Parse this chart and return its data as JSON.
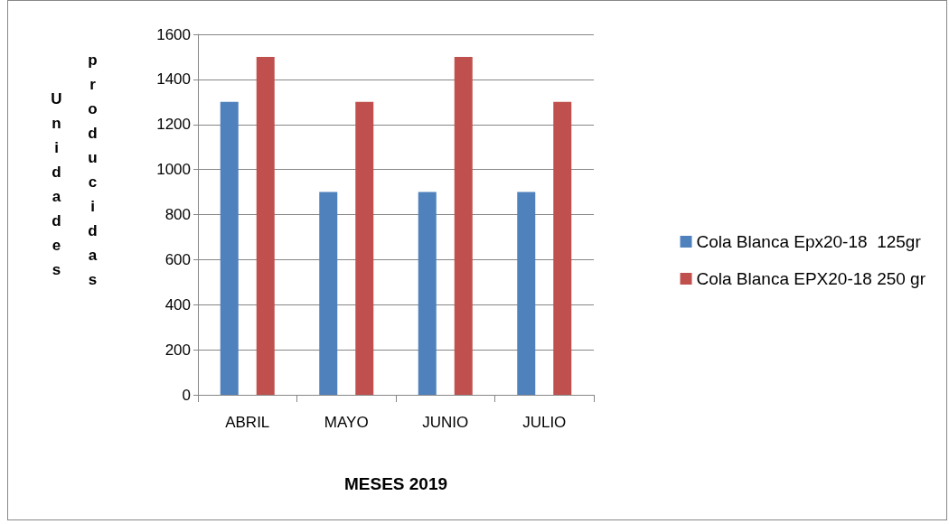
{
  "chart_data": {
    "type": "bar",
    "xlabel": "MESES 2019",
    "ylabel": "Unidades producidas",
    "categories": [
      "ABRIL",
      "MAYO",
      "JUNIO",
      "JULIO"
    ],
    "series": [
      {
        "name": "Cola Blanca Epx20-18  125gr",
        "color": "#4f81bd",
        "values": [
          1300,
          900,
          900,
          900
        ]
      },
      {
        "name": "Cola Blanca EPX20-18 250 gr",
        "color": "#c0504d",
        "values": [
          1500,
          1300,
          1500,
          1300
        ]
      }
    ],
    "ylim": [
      0,
      1600
    ],
    "yticks": [
      0,
      200,
      400,
      600,
      800,
      1000,
      1200,
      1400,
      1600
    ],
    "grid": "y",
    "legend": "right"
  }
}
